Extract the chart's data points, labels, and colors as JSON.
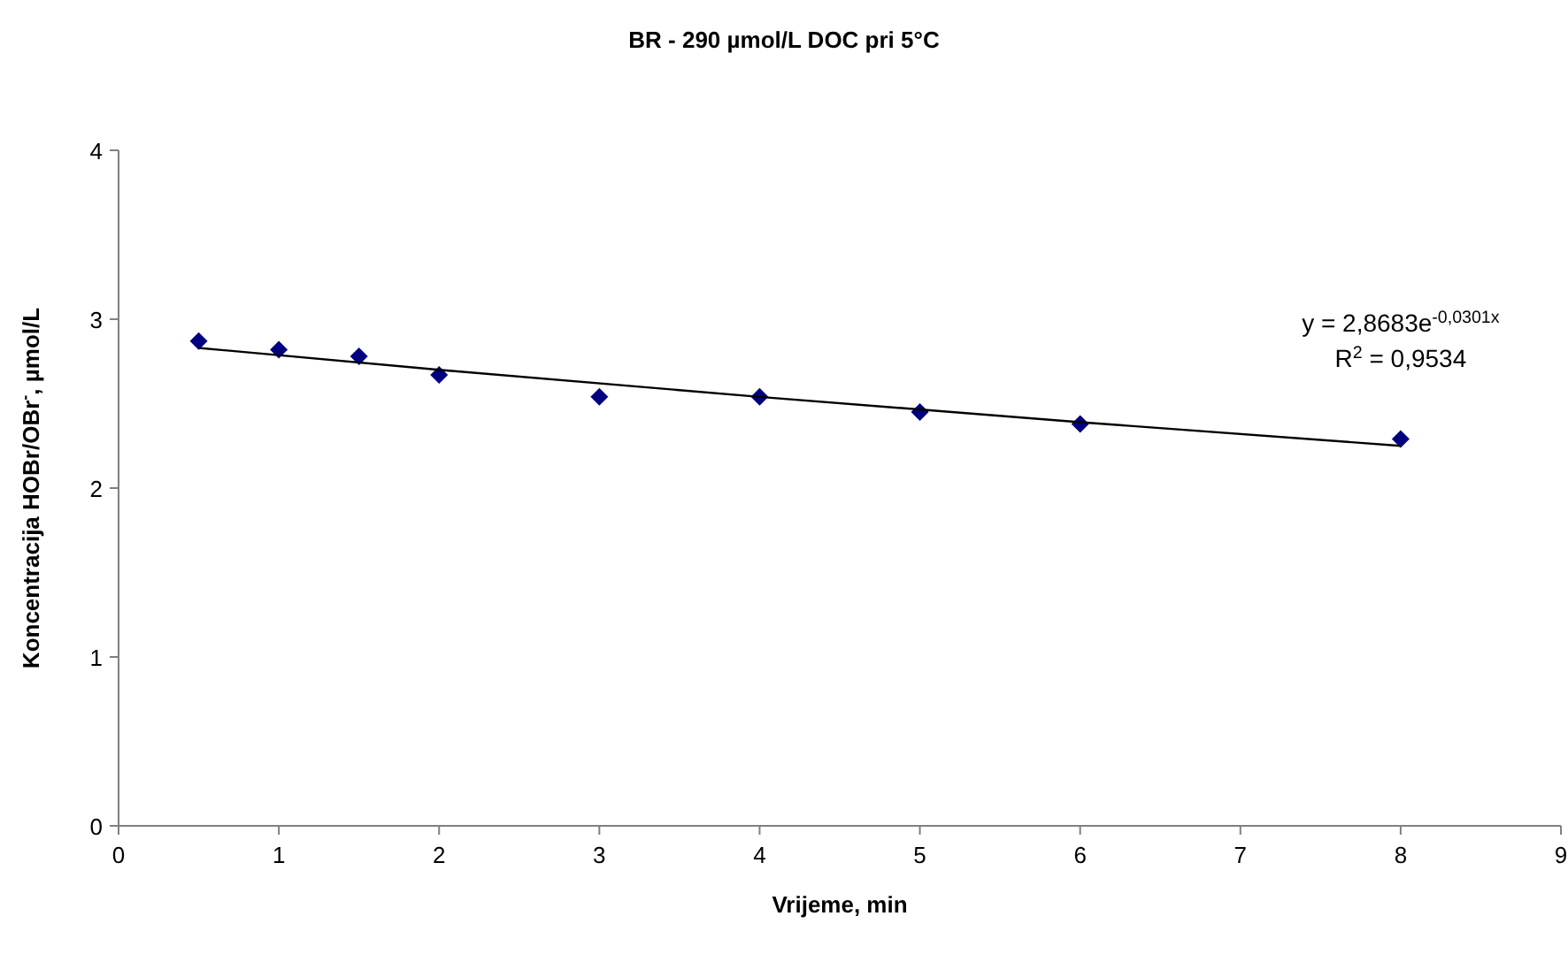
{
  "chart_data": {
    "type": "scatter",
    "title": "BR - 290 µmol/L DOC pri 5°C",
    "xlabel": "Vrijeme, min",
    "ylabel": "Koncentracija HOBr/OBr$^{-}$,  µmol/L",
    "x": [
      0.5,
      1,
      1.5,
      2,
      3,
      4,
      5,
      6,
      8
    ],
    "series": [
      {
        "color": "#000080",
        "marker": "diamond",
        "values": [
          2.87,
          2.82,
          2.78,
          2.67,
          2.54,
          2.54,
          2.45,
          2.38,
          2.29
        ]
      },
      {
        "type": "line",
        "color": "#000000",
        "marker": "none",
        "x": [
          0.5,
          2,
          4,
          6,
          8
        ],
        "values": [
          2.83,
          2.7,
          2.54,
          2.39,
          2.25
        ]
      }
    ],
    "annotations": [
      "y = 2,8683e$^{-0,0301x}$",
      "R$^{2}$ = 0,9534"
    ],
    "xlim": [
      0,
      9
    ],
    "xticks": [
      0,
      1,
      2,
      3,
      4,
      5,
      6,
      7,
      8,
      9
    ],
    "ylim": [
      0,
      4
    ],
    "yticks": [
      0,
      1,
      2,
      3,
      4
    ],
    "grid": false
  }
}
